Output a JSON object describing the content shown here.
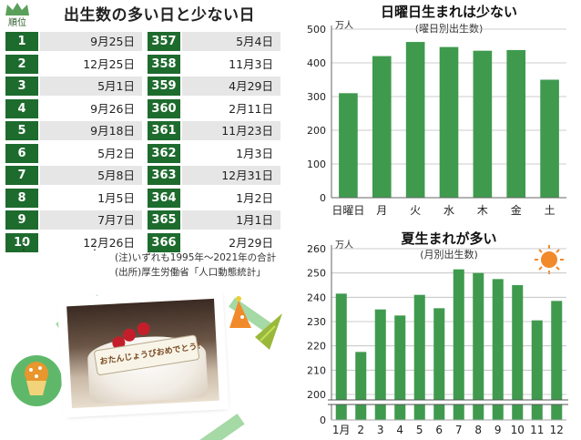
{
  "left": {
    "title": "出生数の多い日と少ない日",
    "rank_label": "順位",
    "top": [
      {
        "rank": "1",
        "date": "9月25日"
      },
      {
        "rank": "2",
        "date": "12月25日"
      },
      {
        "rank": "3",
        "date": "5月1日"
      },
      {
        "rank": "4",
        "date": "9月26日"
      },
      {
        "rank": "5",
        "date": "9月18日"
      },
      {
        "rank": "6",
        "date": "5月2日"
      },
      {
        "rank": "7",
        "date": "5月8日"
      },
      {
        "rank": "8",
        "date": "1月5日"
      },
      {
        "rank": "9",
        "date": "7月7日"
      },
      {
        "rank": "10",
        "date": "12月26日"
      }
    ],
    "bottom": [
      {
        "rank": "357",
        "date": "5月4日"
      },
      {
        "rank": "358",
        "date": "11月3日"
      },
      {
        "rank": "359",
        "date": "4月29日"
      },
      {
        "rank": "360",
        "date": "2月11日"
      },
      {
        "rank": "361",
        "date": "11月23日"
      },
      {
        "rank": "362",
        "date": "1月3日"
      },
      {
        "rank": "363",
        "date": "12月31日"
      },
      {
        "rank": "364",
        "date": "1月2日"
      },
      {
        "rank": "365",
        "date": "1月1日"
      },
      {
        "rank": "366",
        "date": "2月29日"
      }
    ],
    "ellipsis": "⋮",
    "note1": "(注)いずれも1995年～2021年の合計",
    "note2": "(出所)厚生労働省「人口動態統計」",
    "photo_plate_text": "おたんじょうびおめでとう!"
  },
  "chart_data": [
    {
      "type": "bar",
      "title": "日曜日生まれは少ない",
      "subtitle": "(曜日別出生数)",
      "unit": "万人",
      "categories": [
        "日曜日",
        "月",
        "火",
        "水",
        "木",
        "金",
        "土"
      ],
      "values": [
        310,
        420,
        462,
        447,
        436,
        438,
        350
      ],
      "ylim": [
        0,
        500
      ],
      "yticks": [
        0,
        100,
        200,
        300,
        400,
        500
      ],
      "color": "#3f9a4e"
    },
    {
      "type": "bar",
      "title": "夏生まれが多い",
      "subtitle": "(月別出生数)",
      "unit": "万人",
      "categories": [
        "1月",
        "2",
        "3",
        "4",
        "5",
        "6",
        "7",
        "8",
        "9",
        "10",
        "11",
        "12"
      ],
      "values": [
        241.5,
        217.5,
        235,
        232.5,
        241,
        235.5,
        251.5,
        250,
        247.5,
        245,
        230.5,
        238.5
      ],
      "ylim": [
        200,
        260
      ],
      "yticks": [
        200,
        210,
        220,
        230,
        240,
        250,
        260
      ],
      "axis_break": true,
      "zero_tick": 0,
      "color": "#3f9a4e"
    }
  ]
}
